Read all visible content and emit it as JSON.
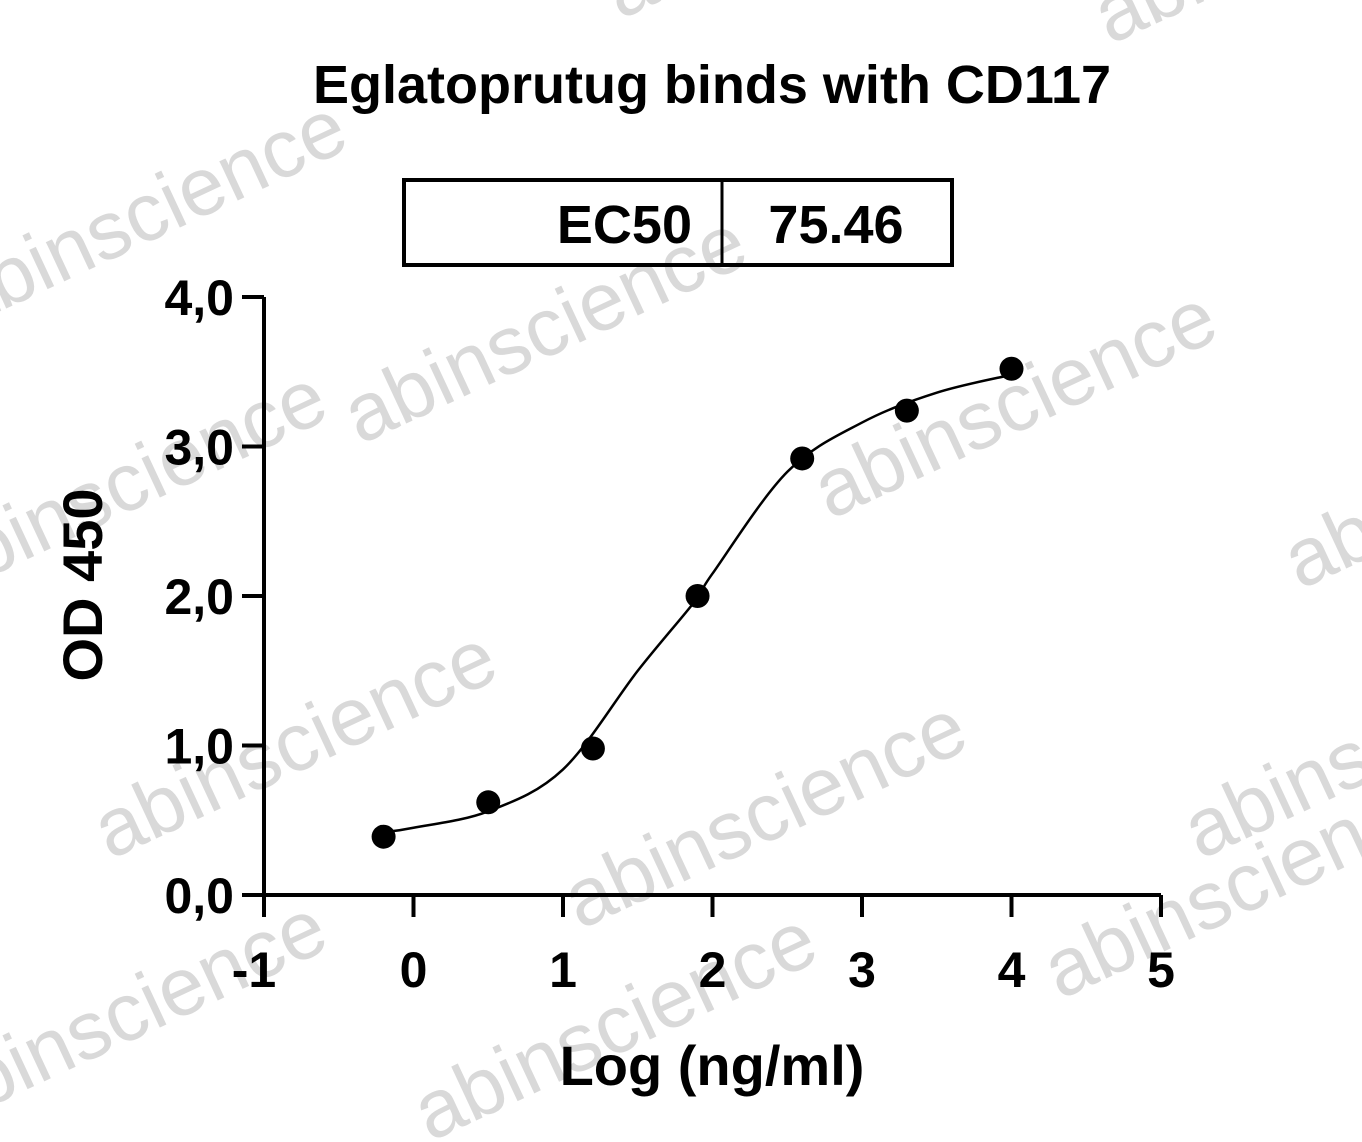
{
  "chart_data": {
    "type": "scatter",
    "title": "Eglatoprutug binds with CD117",
    "table": {
      "header": "EC50",
      "value": "75.46"
    },
    "x_label": "Log (ng/ml)",
    "y_label": "OD 450",
    "watermark": "abinscience",
    "x": [
      -0.2,
      0.5,
      1.2,
      1.9,
      2.6,
      3.3,
      4.0
    ],
    "values": [
      0.39,
      0.62,
      0.98,
      2.0,
      2.92,
      3.24,
      3.52
    ],
    "color": "#000000",
    "curve": {
      "x": [
        -0.2,
        0,
        0.5,
        1,
        1.5,
        1.878,
        2,
        2.5,
        3,
        3.5,
        4
      ],
      "values": [
        0.42,
        0.45,
        0.56,
        0.84,
        1.5,
        1.96,
        2.15,
        2.83,
        3.16,
        3.36,
        3.48
      ]
    },
    "xlim": [
      -1,
      5
    ],
    "xticks": [
      -1,
      0,
      1,
      2,
      3,
      4,
      5
    ],
    "ylim": [
      0,
      4
    ],
    "yticks": [
      {
        "value": 0,
        "label": "0,0"
      },
      {
        "value": 1,
        "label": "1,0"
      },
      {
        "value": 2,
        "label": "2,0"
      },
      {
        "value": 3,
        "label": "3,0"
      },
      {
        "value": 4,
        "label": "4,0"
      }
    ]
  }
}
